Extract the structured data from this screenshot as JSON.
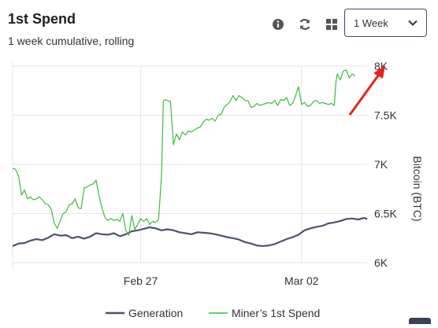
{
  "header": {
    "title": "1st Spend",
    "subtitle": "1 week cumulative, rolling",
    "icons": [
      "info-icon",
      "refresh-icon",
      "grid-icon"
    ],
    "range_select": {
      "value": "1 Week"
    }
  },
  "colors": {
    "generation": "#4a5470",
    "miners_first_spend": "#3dbb3d",
    "arrow": "#e8231c",
    "grid": "#e6e6e6"
  },
  "chart_data": {
    "type": "line",
    "x_ticks": [
      "Feb 27",
      "Mar 02"
    ],
    "ylabel": "Bitcoin (BTC)",
    "y_ticks": [
      "6K",
      "6.5K",
      "7K",
      "7.5K",
      "8K"
    ],
    "y_tick_values": [
      6000,
      6500,
      7000,
      7500,
      8000
    ],
    "ylim": [
      6000,
      8000
    ],
    "legend_position": "bottom",
    "annotation": "red arrow pointing at the 8K level",
    "series": [
      {
        "name": "Generation",
        "points": [
          [
            0,
            6170
          ],
          [
            2,
            6195
          ],
          [
            4,
            6200
          ],
          [
            6,
            6225
          ],
          [
            8,
            6240
          ],
          [
            10,
            6230
          ],
          [
            12,
            6255
          ],
          [
            14,
            6290
          ],
          [
            16,
            6275
          ],
          [
            18,
            6280
          ],
          [
            20,
            6250
          ],
          [
            22,
            6265
          ],
          [
            24,
            6245
          ],
          [
            26,
            6265
          ],
          [
            28,
            6300
          ],
          [
            30,
            6290
          ],
          [
            32,
            6285
          ],
          [
            34,
            6300
          ],
          [
            36,
            6270
          ],
          [
            38,
            6290
          ],
          [
            40,
            6320
          ],
          [
            42,
            6330
          ],
          [
            44,
            6345
          ],
          [
            46,
            6360
          ],
          [
            48,
            6350
          ],
          [
            50,
            6330
          ],
          [
            52,
            6340
          ],
          [
            54,
            6330
          ],
          [
            56,
            6310
          ],
          [
            58,
            6300
          ],
          [
            60,
            6290
          ],
          [
            62,
            6310
          ],
          [
            64,
            6305
          ],
          [
            66,
            6300
          ],
          [
            68,
            6290
          ],
          [
            70,
            6275
          ],
          [
            72,
            6260
          ],
          [
            74,
            6250
          ],
          [
            76,
            6235
          ],
          [
            78,
            6210
          ],
          [
            80,
            6195
          ],
          [
            82,
            6175
          ],
          [
            84,
            6170
          ],
          [
            86,
            6175
          ],
          [
            88,
            6190
          ],
          [
            90,
            6215
          ],
          [
            92,
            6240
          ],
          [
            94,
            6260
          ],
          [
            96,
            6285
          ],
          [
            98,
            6330
          ],
          [
            100,
            6350
          ],
          [
            102,
            6365
          ],
          [
            104,
            6375
          ],
          [
            106,
            6400
          ],
          [
            108,
            6410
          ],
          [
            110,
            6425
          ],
          [
            112,
            6445
          ],
          [
            114,
            6450
          ],
          [
            116,
            6440
          ],
          [
            118,
            6455
          ],
          [
            119,
            6445
          ]
        ]
      },
      {
        "name": "Miner’s 1st Spend",
        "points": [
          [
            0,
            6960
          ],
          [
            1,
            6950
          ],
          [
            2,
            6880
          ],
          [
            3,
            6690
          ],
          [
            4,
            6740
          ],
          [
            5,
            6650
          ],
          [
            6,
            6670
          ],
          [
            7,
            6640
          ],
          [
            8,
            6650
          ],
          [
            9,
            6670
          ],
          [
            10,
            6640
          ],
          [
            11,
            6600
          ],
          [
            12,
            6590
          ],
          [
            13,
            6540
          ],
          [
            14,
            6400
          ],
          [
            15,
            6350
          ],
          [
            16,
            6430
          ],
          [
            17,
            6500
          ],
          [
            18,
            6520
          ],
          [
            19,
            6590
          ],
          [
            20,
            6600
          ],
          [
            21,
            6650
          ],
          [
            22,
            6560
          ],
          [
            23,
            6550
          ],
          [
            24,
            6760
          ],
          [
            25,
            6770
          ],
          [
            26,
            6790
          ],
          [
            27,
            6800
          ],
          [
            28,
            6840
          ],
          [
            29,
            6680
          ],
          [
            30,
            6560
          ],
          [
            31,
            6460
          ],
          [
            32,
            6430
          ],
          [
            33,
            6450
          ],
          [
            34,
            6430
          ],
          [
            35,
            6440
          ],
          [
            36,
            6420
          ],
          [
            37,
            6500
          ],
          [
            38,
            6330
          ],
          [
            39,
            6280
          ],
          [
            40,
            6480
          ],
          [
            41,
            6340
          ],
          [
            42,
            6390
          ],
          [
            43,
            6450
          ],
          [
            44,
            6420
          ],
          [
            45,
            6450
          ],
          [
            46,
            6390
          ],
          [
            47,
            6420
          ],
          [
            48,
            6410
          ],
          [
            49,
            6440
          ],
          [
            50,
            6900
          ],
          [
            50.6,
            7640
          ],
          [
            51,
            7660
          ],
          [
            52,
            7650
          ],
          [
            53,
            7640
          ],
          [
            54,
            7200
          ],
          [
            55,
            7310
          ],
          [
            56,
            7250
          ],
          [
            57,
            7330
          ],
          [
            58,
            7300
          ],
          [
            59,
            7340
          ],
          [
            60,
            7330
          ],
          [
            61,
            7350
          ],
          [
            62,
            7370
          ],
          [
            63,
            7380
          ],
          [
            64,
            7430
          ],
          [
            65,
            7460
          ],
          [
            66,
            7450
          ],
          [
            67,
            7470
          ],
          [
            68,
            7440
          ],
          [
            69,
            7500
          ],
          [
            70,
            7510
          ],
          [
            71,
            7580
          ],
          [
            72,
            7610
          ],
          [
            73,
            7640
          ],
          [
            74,
            7700
          ],
          [
            75,
            7650
          ],
          [
            76,
            7700
          ],
          [
            77,
            7680
          ],
          [
            78,
            7650
          ],
          [
            79,
            7650
          ],
          [
            80,
            7580
          ],
          [
            81,
            7590
          ],
          [
            82,
            7620
          ],
          [
            83,
            7600
          ],
          [
            84,
            7610
          ],
          [
            85,
            7620
          ],
          [
            86,
            7630
          ],
          [
            87,
            7620
          ],
          [
            88,
            7650
          ],
          [
            89,
            7600
          ],
          [
            90,
            7660
          ],
          [
            91,
            7650
          ],
          [
            92,
            7680
          ],
          [
            93,
            7600
          ],
          [
            94,
            7620
          ],
          [
            95,
            7700
          ],
          [
            96,
            7790
          ],
          [
            97,
            7610
          ],
          [
            98,
            7630
          ],
          [
            99,
            7590
          ],
          [
            100,
            7600
          ],
          [
            101,
            7640
          ],
          [
            102,
            7650
          ],
          [
            103,
            7620
          ],
          [
            104,
            7630
          ],
          [
            105,
            7620
          ],
          [
            106,
            7610
          ],
          [
            107,
            7620
          ],
          [
            108,
            7600
          ],
          [
            108.5,
            7830
          ],
          [
            109,
            7920
          ],
          [
            110,
            7860
          ],
          [
            111,
            7950
          ],
          [
            112,
            7960
          ],
          [
            113,
            7880
          ],
          [
            114,
            7920
          ],
          [
            115,
            7900
          ]
        ]
      }
    ]
  }
}
